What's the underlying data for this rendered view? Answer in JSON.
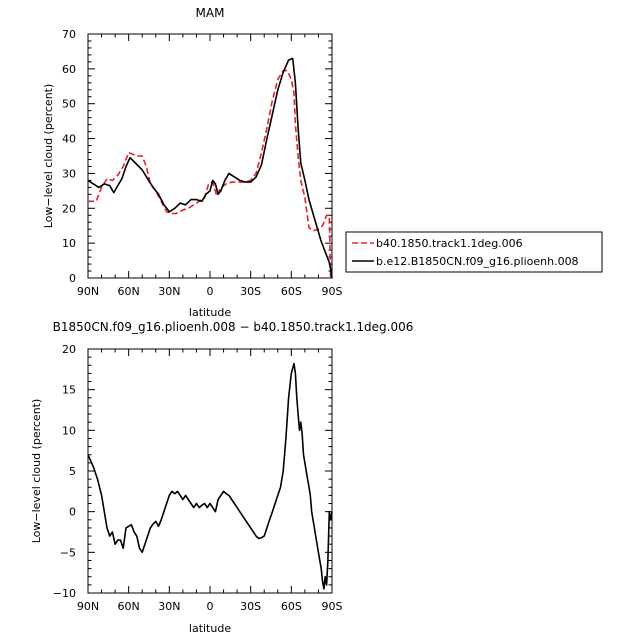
{
  "chart_data": [
    {
      "type": "line",
      "title": "MAM",
      "xlabel": "latitude",
      "ylabel": "Low−level cloud (percent)",
      "xlim": [
        90,
        -90
      ],
      "ylim": [
        0,
        70
      ],
      "x_ticks": [
        90,
        60,
        30,
        0,
        -30,
        -60,
        -90
      ],
      "x_tick_labels": [
        "90N",
        "60N",
        "30N",
        "0",
        "30S",
        "60S",
        "90S"
      ],
      "y_ticks": [
        0,
        10,
        20,
        30,
        40,
        50,
        60,
        70
      ],
      "legend": "right",
      "series": [
        {
          "name": "b40.1850.track1.1deg.006",
          "color": "#e8202a",
          "dash": "dashed",
          "x": [
            90,
            84,
            80,
            76,
            72,
            68,
            64,
            60,
            57,
            54,
            50,
            47,
            44,
            40,
            36,
            32,
            28,
            25,
            20,
            16,
            12,
            8,
            4,
            1,
            -2,
            -5,
            -8,
            -12,
            -16,
            -20,
            -25,
            -30,
            -34,
            -38,
            -42,
            -46,
            -50,
            -54,
            -57,
            -60,
            -62,
            -63,
            -65,
            -67,
            -70,
            -73,
            -76,
            -80,
            -83,
            -86,
            -88,
            -89,
            -90
          ],
          "y": [
            22,
            22,
            26,
            28.5,
            28,
            29.5,
            32,
            36,
            35.5,
            35,
            35,
            32,
            27,
            25,
            22,
            19,
            18.5,
            18.5,
            19.5,
            20,
            21,
            22,
            23,
            27,
            27.5,
            23.5,
            26,
            27,
            27.5,
            27.5,
            27.5,
            28,
            30,
            36,
            43,
            51,
            57,
            59.5,
            59.5,
            57,
            53,
            44,
            35,
            28,
            23,
            14.5,
            13.5,
            14,
            15,
            18,
            18,
            0.5,
            0
          ]
        },
        {
          "name": "b.e12.B1850CN.f09_g16.plioenh.008",
          "color": "#000000",
          "dash": "solid",
          "x": [
            90,
            86,
            82,
            78,
            74,
            71,
            68,
            65,
            62,
            59,
            55,
            50,
            46,
            42,
            38,
            34,
            30,
            26,
            22,
            18,
            14,
            10,
            6,
            3,
            0,
            -2,
            -4,
            -6,
            -8,
            -11,
            -14,
            -18,
            -22,
            -26,
            -30,
            -34,
            -38,
            -42,
            -46,
            -50,
            -54,
            -58,
            -61,
            -63,
            -65,
            -67,
            -70,
            -73,
            -76,
            -79,
            -82,
            -85,
            -87,
            -88,
            -89,
            -90
          ],
          "y": [
            28,
            27,
            26,
            27,
            26.5,
            24.5,
            26.5,
            28.5,
            32,
            34.5,
            33,
            31,
            28.5,
            26,
            24,
            21,
            19,
            20,
            21.5,
            21,
            22.5,
            22.5,
            22,
            24,
            25,
            28,
            27,
            24,
            25,
            28,
            30,
            29,
            28,
            27.5,
            27.5,
            29,
            32.5,
            40,
            47,
            54,
            59,
            62.5,
            63,
            56,
            43,
            33,
            28,
            22.5,
            18.5,
            14.5,
            10.5,
            7.5,
            5.5,
            4.5,
            2.5,
            0
          ]
        }
      ]
    },
    {
      "type": "line",
      "title": "B1850CN.f09_g16.plioenh.008 − b40.1850.track1.1deg.006",
      "xlabel": "latitude",
      "ylabel": "Low−level cloud (percent)",
      "xlim": [
        90,
        -90
      ],
      "ylim": [
        -10,
        20
      ],
      "x_ticks": [
        90,
        60,
        30,
        0,
        -30,
        -60,
        -90
      ],
      "x_tick_labels": [
        "90N",
        "60N",
        "30N",
        "0",
        "30S",
        "60S",
        "90S"
      ],
      "y_ticks": [
        -10,
        -5,
        0,
        5,
        10,
        15,
        20
      ],
      "series": [
        {
          "color": "#000000",
          "dash": "solid",
          "x": [
            90,
            86,
            83,
            80,
            78,
            76,
            74,
            72,
            70,
            68,
            66,
            64,
            62,
            60,
            58,
            56,
            54,
            52,
            50,
            48,
            46,
            44,
            42,
            40,
            38,
            36,
            34,
            32,
            30,
            28,
            26,
            24,
            22,
            20,
            18,
            16,
            14,
            12,
            10,
            8,
            6,
            4,
            2,
            0,
            -2,
            -4,
            -6,
            -8,
            -10,
            -12,
            -14,
            -16,
            -18,
            -20,
            -22,
            -24,
            -26,
            -28,
            -30,
            -32,
            -34,
            -36,
            -38,
            -40,
            -42,
            -44,
            -46,
            -48,
            -50,
            -52,
            -54,
            -56,
            -58,
            -60,
            -62,
            -63,
            -64,
            -65,
            -66,
            -67,
            -68,
            -69,
            -70,
            -71,
            -72,
            -73,
            -74,
            -75,
            -76,
            -77,
            -78,
            -79,
            -80,
            -81,
            -82,
            -83,
            -84,
            -85,
            -86,
            -87,
            -88,
            -89,
            -90
          ],
          "y": [
            7,
            5.5,
            4,
            2,
            0,
            -2,
            -3,
            -2.5,
            -4,
            -3.5,
            -3.5,
            -4.5,
            -2,
            -1.8,
            -1.6,
            -2.5,
            -3,
            -4.5,
            -5,
            -4,
            -3,
            -2,
            -1.5,
            -1.2,
            -1.8,
            -1,
            0,
            1,
            2,
            2.5,
            2.2,
            2.5,
            2,
            1.5,
            2,
            1.5,
            1,
            0.5,
            1,
            0.5,
            0.8,
            1,
            0.5,
            1,
            0.5,
            0,
            1.5,
            2,
            2.5,
            2.2,
            2,
            1.5,
            1,
            0.5,
            0,
            -0.5,
            -1,
            -1.5,
            -2,
            -2.5,
            -3,
            -3.3,
            -3.2,
            -3,
            -2,
            -1,
            0,
            1,
            2,
            3,
            5,
            9,
            14,
            17,
            18.2,
            17,
            14,
            12,
            10,
            11,
            9.5,
            7,
            6,
            5,
            4,
            3,
            2,
            0,
            -1,
            -2,
            -3,
            -4,
            -5,
            -6,
            -7,
            -8.5,
            -9.5,
            -8,
            -9,
            -6,
            0,
            -1,
            0
          ]
        }
      ]
    }
  ]
}
